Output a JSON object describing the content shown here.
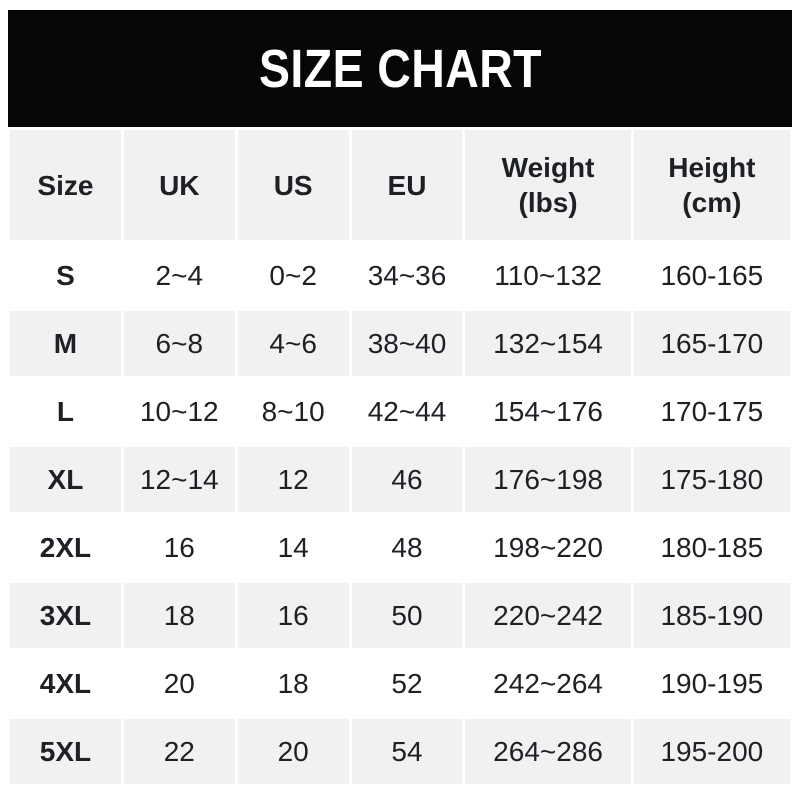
{
  "banner": {
    "title": "SIZE CHART"
  },
  "colors": {
    "banner_bg": "#060606",
    "banner_text": "#ffffff",
    "row_bg": "#ffffff",
    "row_alt_bg": "#f1f1f2",
    "text": "#1d2025"
  },
  "chart_data": {
    "type": "table",
    "title": "SIZE CHART",
    "columns": [
      {
        "label": "Size"
      },
      {
        "label": "UK"
      },
      {
        "label": "US"
      },
      {
        "label": "EU"
      },
      {
        "label": "Weight",
        "label2": "(lbs)"
      },
      {
        "label": "Height",
        "label2": "(cm)"
      }
    ],
    "rows": [
      {
        "size": "S",
        "uk": "2~4",
        "us": "0~2",
        "eu": "34~36",
        "weight": "110~132",
        "height": "160-165"
      },
      {
        "size": "M",
        "uk": "6~8",
        "us": "4~6",
        "eu": "38~40",
        "weight": "132~154",
        "height": "165-170"
      },
      {
        "size": "L",
        "uk": "10~12",
        "us": "8~10",
        "eu": "42~44",
        "weight": "154~176",
        "height": "170-175"
      },
      {
        "size": "XL",
        "uk": "12~14",
        "us": "12",
        "eu": "46",
        "weight": "176~198",
        "height": "175-180"
      },
      {
        "size": "2XL",
        "uk": "16",
        "us": "14",
        "eu": "48",
        "weight": "198~220",
        "height": "180-185"
      },
      {
        "size": "3XL",
        "uk": "18",
        "us": "16",
        "eu": "50",
        "weight": "220~242",
        "height": "185-190"
      },
      {
        "size": "4XL",
        "uk": "20",
        "us": "18",
        "eu": "52",
        "weight": "242~264",
        "height": "190-195"
      },
      {
        "size": "5XL",
        "uk": "22",
        "us": "20",
        "eu": "54",
        "weight": "264~286",
        "height": "195-200"
      }
    ]
  }
}
